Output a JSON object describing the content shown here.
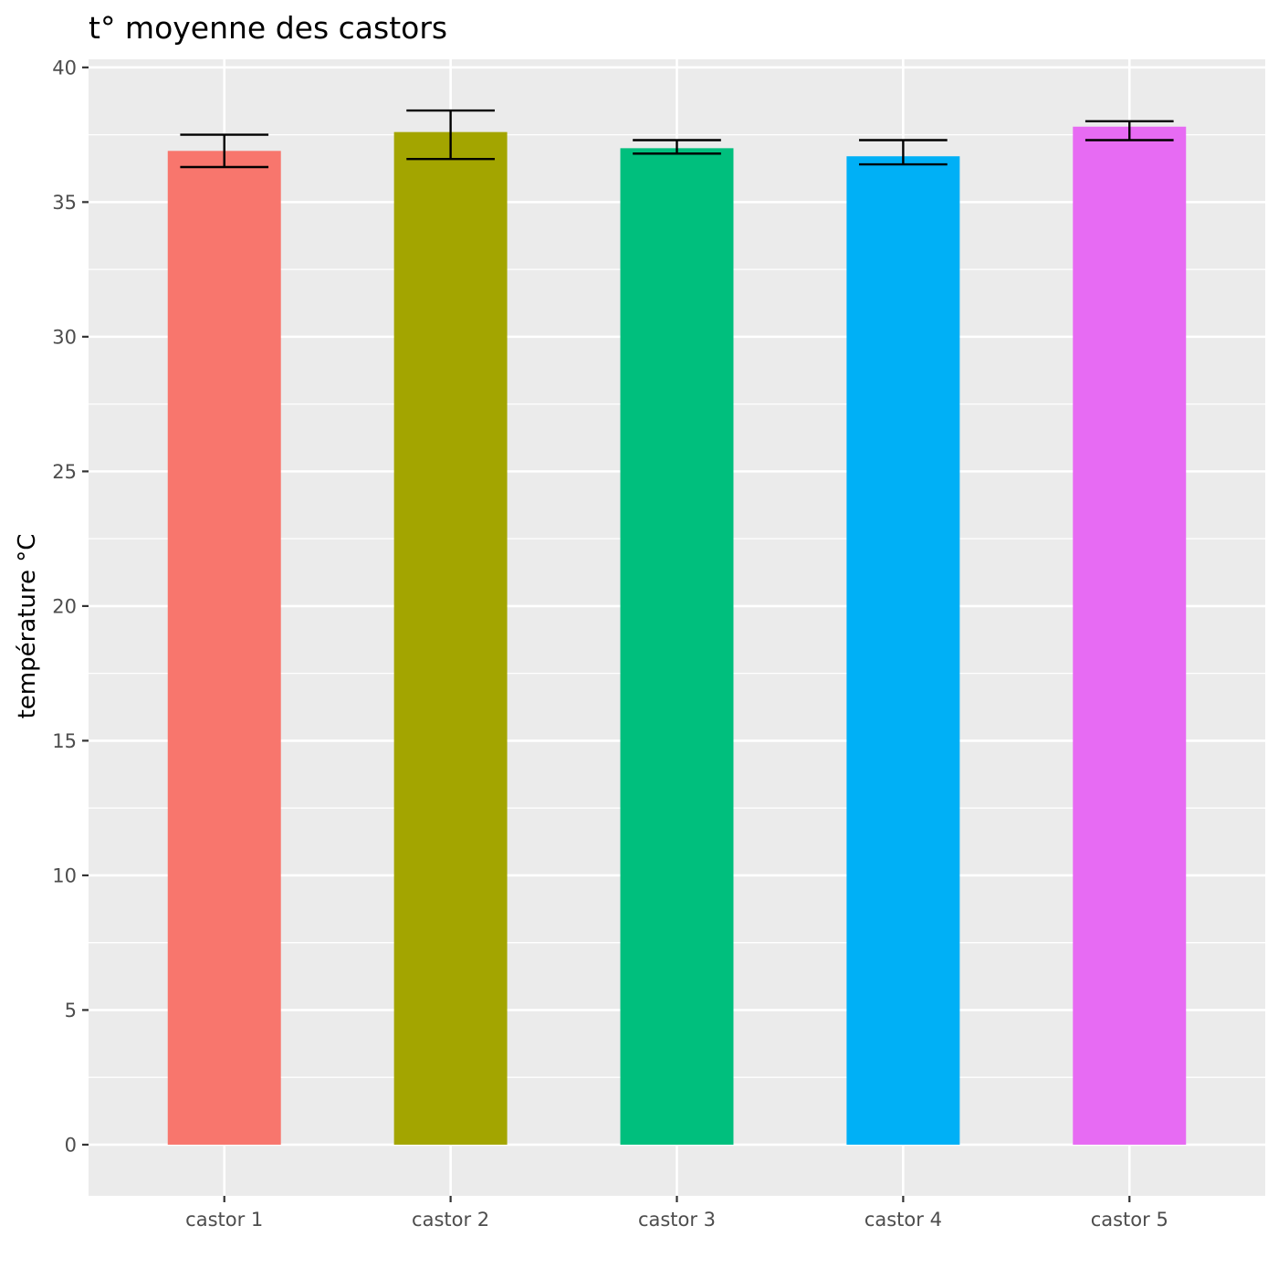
{
  "chart_data": {
    "type": "bar",
    "title": "t° moyenne des castors",
    "xlabel": "",
    "ylabel": "température °C",
    "categories": [
      "castor 1",
      "castor 2",
      "castor 3",
      "castor 4",
      "castor 5"
    ],
    "values": [
      36.9,
      37.6,
      37.0,
      36.7,
      37.8
    ],
    "error_bars": [
      {
        "lower": 36.3,
        "upper": 37.5
      },
      {
        "lower": 36.6,
        "upper": 38.4
      },
      {
        "lower": 36.8,
        "upper": 37.3
      },
      {
        "lower": 36.4,
        "upper": 37.3
      },
      {
        "lower": 37.3,
        "upper": 38.0
      }
    ],
    "colors": [
      "#F8766D",
      "#A3A500",
      "#00BF7D",
      "#00B0F6",
      "#E76BF3"
    ],
    "ylim": [
      -1.9,
      40.3
    ],
    "yticks": [
      0,
      5,
      10,
      15,
      20,
      25,
      30,
      35,
      40
    ],
    "grid": true,
    "legend": "none",
    "panel_background": "#EBEBEB"
  }
}
